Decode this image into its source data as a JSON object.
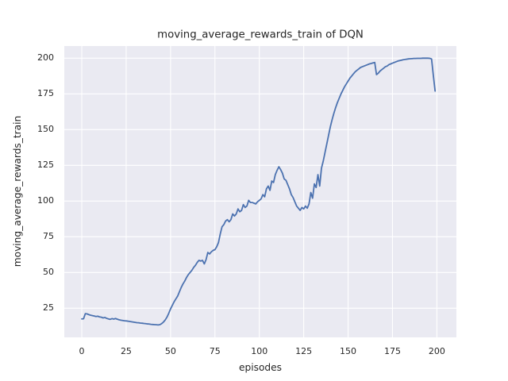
{
  "figure": {
    "background": "#ffffff"
  },
  "chart_data": {
    "type": "line",
    "title": "moving_average_rewards_train of DQN",
    "xlabel": "episodes",
    "ylabel": "moving_average_rewards_train",
    "x_ticks": [
      0,
      25,
      50,
      75,
      100,
      125,
      150,
      175,
      200
    ],
    "y_ticks": [
      25,
      50,
      75,
      100,
      125,
      150,
      175,
      200
    ],
    "xlim": [
      -9.85,
      211.0
    ],
    "ylim": [
      4.6,
      208.5
    ],
    "grid": true,
    "legend": "none",
    "style": {
      "plot_background": "#eaeaf2",
      "grid_color": "#ffffff",
      "line_color": "#4c72b0",
      "text_color": "#262626",
      "line_width": 1.8
    },
    "series": [
      {
        "name": "moving_average_rewards_train",
        "x_start": 0,
        "x_step": 1,
        "y": [
          17.5,
          17.6,
          21.2,
          21.0,
          20.5,
          20.1,
          19.8,
          19.5,
          19.2,
          19.4,
          18.9,
          18.7,
          18.2,
          18.5,
          17.9,
          17.5,
          17.2,
          17.7,
          17.4,
          17.8,
          17.3,
          16.9,
          16.6,
          16.4,
          16.2,
          16.1,
          15.9,
          15.7,
          15.5,
          15.3,
          15.1,
          14.9,
          14.8,
          14.6,
          14.5,
          14.3,
          14.2,
          14.0,
          13.9,
          13.7,
          13.6,
          13.5,
          13.4,
          13.3,
          13.5,
          14.2,
          15.3,
          16.8,
          18.8,
          21.5,
          24.5,
          27.0,
          29.5,
          31.5,
          33.5,
          36.5,
          39.5,
          42.0,
          44.0,
          46.5,
          48.5,
          50.0,
          51.5,
          53.5,
          55.0,
          57.0,
          58.5,
          58.0,
          58.5,
          56.0,
          59.0,
          64.0,
          63.0,
          64.5,
          65.5,
          66.0,
          68.0,
          71.0,
          77.0,
          82.0,
          83.5,
          86.0,
          87.0,
          85.5,
          87.0,
          91.0,
          89.5,
          91.0,
          94.5,
          92.5,
          93.5,
          97.5,
          95.5,
          96.5,
          100.5,
          99.0,
          99.0,
          98.5,
          98.0,
          99.5,
          100.5,
          101.5,
          104.5,
          103.0,
          108.5,
          110.5,
          107.5,
          114.0,
          113.0,
          118.5,
          121.5,
          124.0,
          122.0,
          119.5,
          115.5,
          114.5,
          111.5,
          108.5,
          104.5,
          102.5,
          99.5,
          96.5,
          95.0,
          93.5,
          95.5,
          94.5,
          96.5,
          95.0,
          98.0,
          106.0,
          102.0,
          112.0,
          109.5,
          118.5,
          110.5,
          123.0,
          128.0,
          134.0,
          140.0,
          146.0,
          152.0,
          157.0,
          161.5,
          165.5,
          169.0,
          172.0,
          175.0,
          177.5,
          180.0,
          182.0,
          184.0,
          186.0,
          187.5,
          189.0,
          190.5,
          191.5,
          192.5,
          193.5,
          194.0,
          194.5,
          195.0,
          195.5,
          196.0,
          196.3,
          196.7,
          197.0,
          188.5,
          189.5,
          191.0,
          192.0,
          193.0,
          194.0,
          194.5,
          195.5,
          196.0,
          196.5,
          197.0,
          197.5,
          198.0,
          198.3,
          198.6,
          198.9,
          199.1,
          199.3,
          199.5,
          199.6,
          199.7,
          199.8,
          199.8,
          199.9,
          199.9,
          199.9,
          200.0,
          200.0,
          200.0,
          200.0,
          199.9,
          199.5,
          188.0,
          177.0
        ]
      }
    ]
  }
}
